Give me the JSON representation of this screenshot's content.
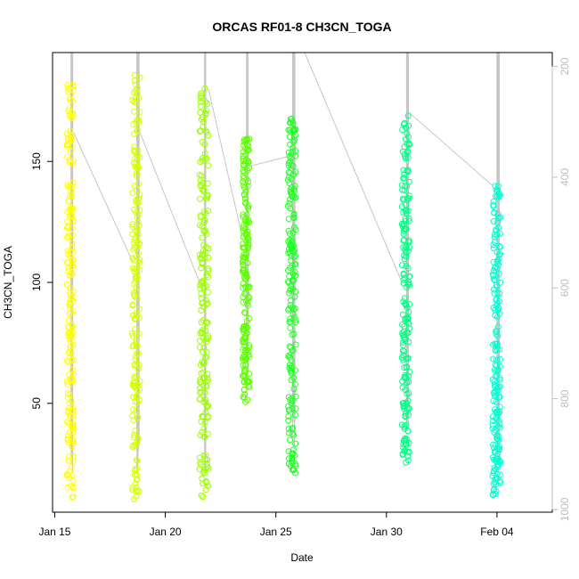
{
  "chart_data": {
    "type": "scatter",
    "title": "ORCAS RF01-8 CH3CN_TOGA",
    "xlabel": "Date",
    "ylabel": "CH3CN_TOGA",
    "x_ticks": [
      "Jan 15",
      "Jan 20",
      "Jan 25",
      "Jan 30",
      "Feb 04"
    ],
    "x_tick_days": [
      0,
      5,
      10,
      15,
      20
    ],
    "xlim_days": [
      -0.1,
      22.5
    ],
    "xlim": [
      "Jan 14",
      "Feb 06"
    ],
    "y_ticks": [
      50,
      100,
      150
    ],
    "ylim": [
      5,
      195
    ],
    "secondary_y": {
      "ticks": [
        200,
        400,
        600,
        800,
        1000
      ],
      "range": [
        1005,
        175
      ],
      "color": "#bdbdbd",
      "side": "right",
      "series": "altitude trace (grey line)"
    },
    "grid": false,
    "legend": "none",
    "flights": [
      {
        "id": "RF01",
        "day_start": 0.55,
        "day_end": 0.85,
        "y_min": 11,
        "y_max": 182,
        "color": "#ffff00"
      },
      {
        "id": "RF02",
        "day_start": 3.5,
        "day_end": 3.85,
        "y_min": 10,
        "y_max": 186,
        "color": "#d8ff00"
      },
      {
        "id": "RF03",
        "day_start": 6.55,
        "day_end": 6.95,
        "y_min": 10,
        "y_max": 181,
        "color": "#9cff00"
      },
      {
        "id": "RF04",
        "day_start": 8.5,
        "day_end": 8.8,
        "y_min": 49,
        "y_max": 160,
        "color": "#5cff00"
      },
      {
        "id": "RF05",
        "day_start": 10.55,
        "day_end": 10.9,
        "y_min": 21,
        "y_max": 168,
        "color": "#22ff26"
      },
      {
        "id": "RF06",
        "day_start": 15.7,
        "day_end": 16.05,
        "y_min": 25,
        "y_max": 170,
        "color": "#00ff86"
      },
      {
        "id": "RF07",
        "day_start": 19.8,
        "day_end": 20.15,
        "y_min": 12,
        "y_max": 140,
        "color": "#00ffd2"
      }
    ],
    "transit_lines": [
      [
        [
          0.85,
          162
        ],
        [
          3.55,
          108
        ]
      ],
      [
        [
          3.85,
          162
        ],
        [
          6.55,
          100
        ]
      ],
      [
        [
          6.95,
          180
        ],
        [
          8.5,
          118
        ]
      ],
      [
        [
          8.8,
          148
        ],
        [
          10.55,
          152
        ]
      ],
      [
        [
          11.3,
          195
        ],
        [
          15.7,
          100
        ]
      ],
      [
        [
          16.05,
          170
        ],
        [
          19.8,
          140
        ]
      ]
    ]
  }
}
